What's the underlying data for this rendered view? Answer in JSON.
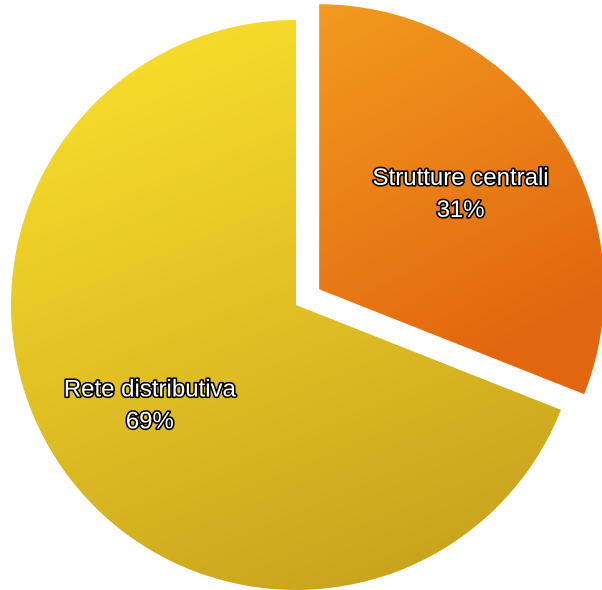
{
  "chart_data": {
    "type": "pie",
    "title": "",
    "slices": [
      {
        "label": "Strutture centrali",
        "percent_label": "31%",
        "value": 31,
        "color_light": "#F29A1E",
        "color_dark": "#E2650F",
        "exploded": true
      },
      {
        "label": "Rete distributiva",
        "percent_label": "69%",
        "value": 69,
        "color_light": "#F8DD2B",
        "color_dark": "#C9A21D",
        "exploded": false
      }
    ],
    "legend": "none"
  }
}
